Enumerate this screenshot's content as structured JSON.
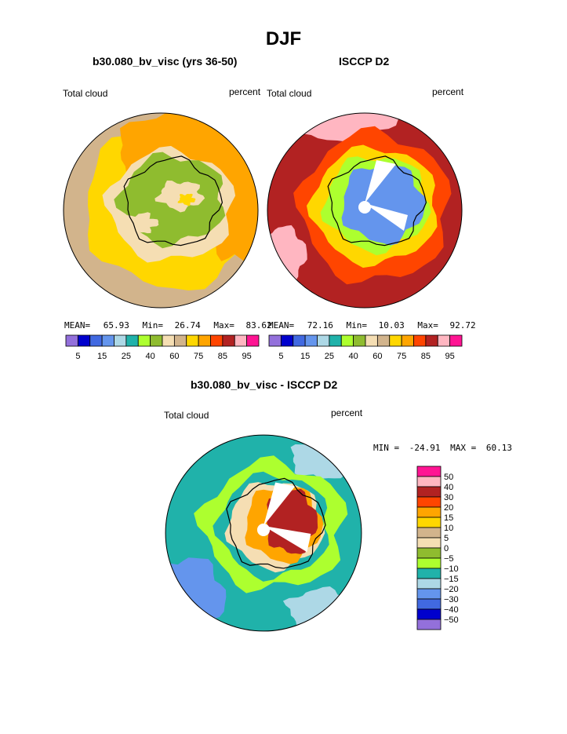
{
  "figure": {
    "title": "DJF",
    "colors": {
      "coastline": "#000000",
      "background": "#ffffff"
    }
  },
  "chart_data": [
    {
      "type": "heatmap",
      "projection": "south-polar-stereographic",
      "title": "b30.080_bv_visc (yrs 36-50)",
      "left_label": "Total cloud",
      "right_label": "percent",
      "stats": {
        "mean_label": "MEAN=",
        "mean": "65.93",
        "min_label": "Min=",
        "min": "26.74",
        "max_label": "Max=",
        "max": "83.62"
      },
      "levels": [
        5,
        10,
        15,
        20,
        25,
        30,
        40,
        50,
        60,
        70,
        75,
        80,
        85,
        90,
        95
      ],
      "tick_labels": [
        "5",
        "15",
        "25",
        "40",
        "60",
        "75",
        "85",
        "95"
      ],
      "colorbar_colors": [
        "#9370db",
        "#0000cd",
        "#4169e1",
        "#6495ed",
        "#add8e6",
        "#20b2aa",
        "#adff2f",
        "#8fbc2f",
        "#f5deb3",
        "#d2b48c",
        "#ffd700",
        "#ffa500",
        "#ff4500",
        "#b22222",
        "#ffb6c1",
        "#ff1493"
      ],
      "field_regions": {
        "ocean_far": "#d2b48c",
        "ocean_mid": "#ffd700",
        "ocean_near": "#ffa500",
        "coast": "#f5deb3",
        "interior": "#8fbc2f",
        "interior_spots": "#ffd700"
      }
    },
    {
      "type": "heatmap",
      "projection": "south-polar-stereographic",
      "title": "ISCCP D2",
      "left_label": "Total cloud",
      "right_label": "percent",
      "stats": {
        "mean_label": "MEAN=",
        "mean": "72.16",
        "min_label": "Min=",
        "min": "10.03",
        "max_label": "Max=",
        "max": "92.72"
      },
      "levels": [
        5,
        10,
        15,
        20,
        25,
        30,
        40,
        50,
        60,
        70,
        75,
        80,
        85,
        90,
        95
      ],
      "tick_labels": [
        "5",
        "15",
        "25",
        "40",
        "60",
        "75",
        "85",
        "95"
      ],
      "colorbar_colors": [
        "#9370db",
        "#0000cd",
        "#4169e1",
        "#6495ed",
        "#add8e6",
        "#20b2aa",
        "#adff2f",
        "#8fbc2f",
        "#f5deb3",
        "#d2b48c",
        "#ffd700",
        "#ffa500",
        "#ff4500",
        "#b22222",
        "#ffb6c1",
        "#ff1493"
      ],
      "field_regions": {
        "ocean_far": "#b22222",
        "ocean_mid": "#ff4500",
        "ocean_edge": "#ffb6c1",
        "coast": "#ffd700",
        "shelf": "#adff2f",
        "interior": "#6495ed",
        "missing": "#ffffff"
      }
    },
    {
      "type": "heatmap",
      "projection": "south-polar-stereographic",
      "title": "b30.080_bv_visc - ISCCP D2",
      "left_label": "Total cloud",
      "right_label": "percent",
      "stats": {
        "min_label": "MIN =",
        "min": "-24.91",
        "max_label": "MAX =",
        "max": "60.13"
      },
      "levels": [
        -50,
        -40,
        -30,
        -20,
        -15,
        -10,
        -5,
        0,
        5,
        10,
        15,
        20,
        30,
        40,
        50
      ],
      "tick_labels": [
        "50",
        "40",
        "30",
        "20",
        "15",
        "10",
        "5",
        "0",
        "−5",
        "−10",
        "−15",
        "−20",
        "−30",
        "−40",
        "−50"
      ],
      "colorbar_colors": [
        "#9370db",
        "#0000cd",
        "#4169e1",
        "#6495ed",
        "#add8e6",
        "#20b2aa",
        "#adff2f",
        "#8fbc2f",
        "#f5deb3",
        "#d2b48c",
        "#ffd700",
        "#ffa500",
        "#ff4500",
        "#b22222",
        "#ffb6c1",
        "#ff1493"
      ],
      "field_regions": {
        "ocean": "#20b2aa",
        "ocean_patches": "#add8e6",
        "ocean_edge": "#6495ed",
        "band": "#adff2f",
        "coast": "#f5deb3",
        "interior_pos": "#ffa500",
        "interior_high": "#b22222",
        "missing": "#ffffff"
      }
    }
  ]
}
